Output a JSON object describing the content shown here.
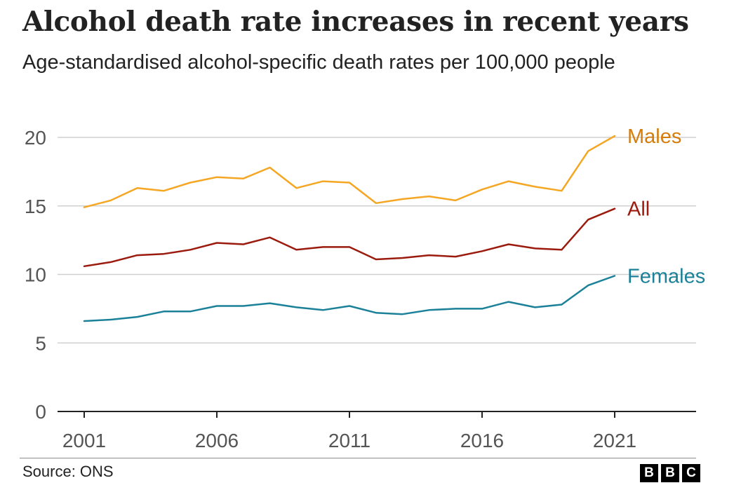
{
  "title": "Alcohol death rate increases in recent years",
  "subtitle": "Age-standardised alcohol-specific death rates per 100,000 people",
  "source": "Source: ONS",
  "logo": [
    "B",
    "B",
    "C"
  ],
  "chart_data": {
    "type": "line",
    "title": "Alcohol death rate increases in recent years",
    "subtitle": "Age-standardised alcohol-specific death rates per 100,000 people",
    "x": [
      2001,
      2002,
      2003,
      2004,
      2005,
      2006,
      2007,
      2008,
      2009,
      2010,
      2011,
      2012,
      2013,
      2014,
      2015,
      2016,
      2017,
      2018,
      2019,
      2020,
      2021
    ],
    "x_ticks": [
      "2001",
      "2006",
      "2011",
      "2016",
      "2021"
    ],
    "y_ticks": [
      "0",
      "5",
      "10",
      "15",
      "20"
    ],
    "ylim": [
      0,
      20
    ],
    "xlim": [
      2001,
      2024
    ],
    "grid": true,
    "legend": "inline labels at line ends",
    "series": [
      {
        "name": "Males",
        "color": "#f5a623",
        "values": [
          14.9,
          15.4,
          16.3,
          16.1,
          16.7,
          17.1,
          17.0,
          17.8,
          16.3,
          16.8,
          16.7,
          15.2,
          15.5,
          15.7,
          15.4,
          16.2,
          16.8,
          16.4,
          16.1,
          19.0,
          20.1
        ],
        "label_color": "#d57d0c"
      },
      {
        "name": "All",
        "color": "#9b1b0e",
        "values": [
          10.6,
          10.9,
          11.4,
          11.5,
          11.8,
          12.3,
          12.2,
          12.7,
          11.8,
          12.0,
          12.0,
          11.1,
          11.2,
          11.4,
          11.3,
          11.7,
          12.2,
          11.9,
          11.8,
          14.0,
          14.8
        ],
        "label_color": "#9b1b0e"
      },
      {
        "name": "Females",
        "color": "#1b8199",
        "values": [
          6.6,
          6.7,
          6.9,
          7.3,
          7.3,
          7.7,
          7.7,
          7.9,
          7.6,
          7.4,
          7.7,
          7.2,
          7.1,
          7.4,
          7.5,
          7.5,
          8.0,
          7.6,
          7.8,
          9.2,
          9.9
        ],
        "label_color": "#1b8199"
      }
    ]
  }
}
